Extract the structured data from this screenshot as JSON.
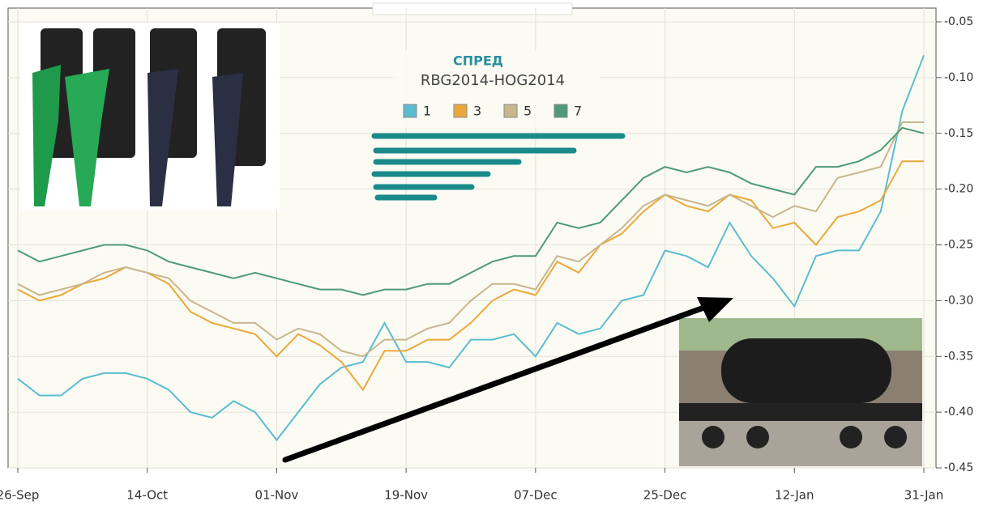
{
  "chart_data": {
    "type": "line",
    "title": "СПРЕД",
    "subtitle": "RBG2014-HOG2014",
    "categories": [
      "26-Sep",
      null,
      null,
      null,
      null,
      null,
      "14-Oct",
      null,
      null,
      null,
      null,
      null,
      "01-Nov",
      null,
      null,
      null,
      null,
      null,
      "19-Nov",
      null,
      null,
      null,
      null,
      null,
      "07-Dec",
      null,
      null,
      null,
      null,
      null,
      "25-Dec",
      null,
      null,
      null,
      null,
      null,
      "12-Jan",
      null,
      null,
      null,
      null,
      null,
      "31-Jan"
    ],
    "series": [
      {
        "name": "1",
        "color": "#5bbcd0",
        "values": [
          -0.37,
          -0.385,
          -0.385,
          -0.37,
          -0.365,
          -0.365,
          -0.37,
          -0.38,
          -0.4,
          -0.405,
          -0.39,
          -0.4,
          -0.425,
          -0.4,
          -0.375,
          -0.36,
          -0.355,
          -0.32,
          -0.355,
          -0.355,
          -0.36,
          -0.335,
          -0.335,
          -0.33,
          -0.35,
          -0.32,
          -0.33,
          -0.325,
          -0.3,
          -0.295,
          -0.255,
          -0.26,
          -0.27,
          -0.23,
          -0.26,
          -0.28,
          -0.305,
          -0.26,
          -0.255,
          -0.255,
          -0.22,
          -0.13,
          -0.08
        ]
      },
      {
        "name": "3",
        "color": "#eba83a",
        "values": [
          -0.29,
          -0.3,
          -0.295,
          -0.285,
          -0.28,
          -0.27,
          -0.275,
          -0.285,
          -0.31,
          -0.32,
          -0.325,
          -0.33,
          -0.35,
          -0.33,
          -0.34,
          -0.355,
          -0.38,
          -0.345,
          -0.345,
          -0.335,
          -0.335,
          -0.32,
          -0.3,
          -0.29,
          -0.295,
          -0.265,
          -0.275,
          -0.25,
          -0.24,
          -0.22,
          -0.205,
          -0.215,
          -0.22,
          -0.205,
          -0.21,
          -0.235,
          -0.23,
          -0.25,
          -0.225,
          -0.22,
          -0.21,
          -0.175,
          -0.175
        ]
      },
      {
        "name": "5",
        "color": "#c9b68e",
        "values": [
          -0.285,
          -0.295,
          -0.29,
          -0.285,
          -0.275,
          -0.27,
          -0.275,
          -0.28,
          -0.3,
          -0.31,
          -0.32,
          -0.32,
          -0.335,
          -0.325,
          -0.33,
          -0.345,
          -0.35,
          -0.335,
          -0.335,
          -0.325,
          -0.32,
          -0.3,
          -0.285,
          -0.285,
          -0.29,
          -0.26,
          -0.265,
          -0.25,
          -0.235,
          -0.215,
          -0.205,
          -0.21,
          -0.215,
          -0.205,
          -0.215,
          -0.225,
          -0.215,
          -0.22,
          -0.19,
          -0.185,
          -0.18,
          -0.14,
          -0.14
        ]
      },
      {
        "name": "7",
        "color": "#4f9a78",
        "values": [
          -0.255,
          -0.265,
          -0.26,
          -0.255,
          -0.25,
          -0.25,
          -0.255,
          -0.265,
          -0.27,
          -0.275,
          -0.28,
          -0.275,
          -0.28,
          -0.285,
          -0.29,
          -0.29,
          -0.295,
          -0.29,
          -0.29,
          -0.285,
          -0.285,
          -0.275,
          -0.265,
          -0.26,
          -0.26,
          -0.23,
          -0.235,
          -0.23,
          -0.21,
          -0.19,
          -0.18,
          -0.185,
          -0.18,
          -0.185,
          -0.195,
          -0.2,
          -0.205,
          -0.18,
          -0.18,
          -0.175,
          -0.165,
          -0.145,
          -0.15
        ]
      }
    ],
    "ylim": [
      -0.45,
      -0.05
    ],
    "yticks": [
      -0.45,
      {
        "value": -0.4,
        "label": "-0.40"
      },
      -0.35,
      {
        "value": -0.3,
        "label": "-0.30"
      },
      -0.25,
      {
        "value": -0.2,
        "label": "-0.20"
      },
      -0.15,
      {
        "value": -0.1,
        "label": "-0.10"
      },
      -0.05
    ],
    "grid": true
  }
}
